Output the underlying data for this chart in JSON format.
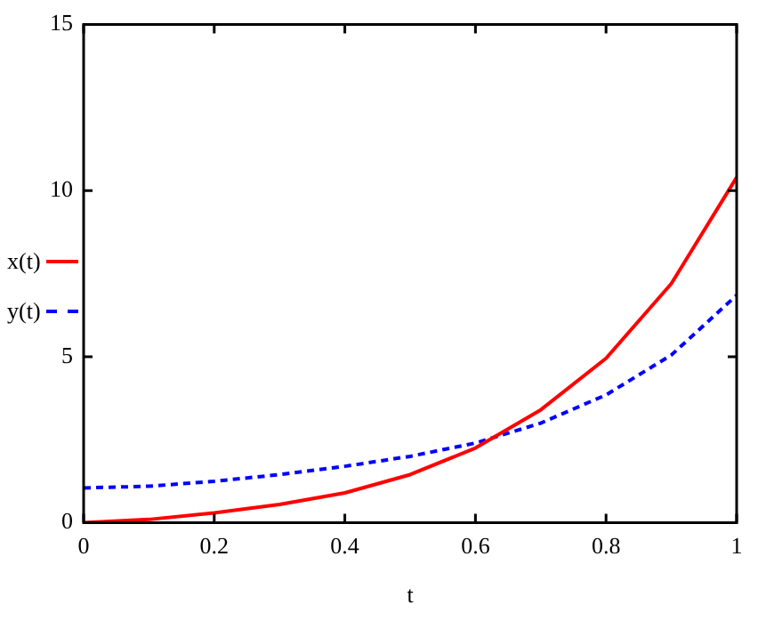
{
  "chart_data": {
    "type": "line",
    "xlabel": "t",
    "x": [
      0,
      0.1,
      0.2,
      0.3,
      0.4,
      0.5,
      0.6,
      0.7,
      0.8,
      0.9,
      1
    ],
    "series": [
      {
        "name": "x(t)",
        "color": "#ff0000",
        "line_style": "solid",
        "values": [
          0,
          0.1,
          0.3,
          0.55,
          0.9,
          1.45,
          2.25,
          3.4,
          4.95,
          7.2,
          10.4
        ]
      },
      {
        "name": "y(t)",
        "color": "#0000ff",
        "line_style": "dashed",
        "values": [
          1.05,
          1.1,
          1.25,
          1.45,
          1.7,
          2.0,
          2.4,
          3.0,
          3.85,
          5.05,
          6.85
        ]
      }
    ],
    "xlim": [
      0,
      1
    ],
    "xticks": [
      0,
      0.2,
      0.4,
      0.6,
      0.8,
      1
    ],
    "ylim": [
      0,
      15
    ],
    "yticks": [
      0,
      5,
      10,
      15
    ],
    "grid": false,
    "legend": "left",
    "marker": "none"
  }
}
